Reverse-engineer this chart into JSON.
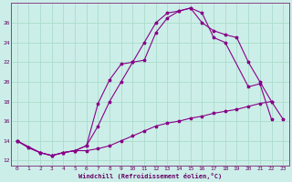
{
  "xlabel": "Windchill (Refroidissement éolien,°C)",
  "background_color": "#cceee8",
  "line_color": "#880088",
  "grid_color": "#aaddcc",
  "xlim": [
    -0.5,
    23.5
  ],
  "ylim": [
    11.5,
    28.0
  ],
  "yticks": [
    12,
    14,
    16,
    18,
    20,
    22,
    24,
    26
  ],
  "xticks": [
    0,
    1,
    2,
    3,
    4,
    5,
    6,
    7,
    8,
    9,
    10,
    11,
    12,
    13,
    14,
    15,
    16,
    17,
    18,
    19,
    20,
    21,
    22,
    23
  ],
  "series1_x": [
    0,
    1,
    2,
    3,
    4,
    5,
    6,
    7,
    8,
    9,
    10,
    11,
    12,
    13,
    14,
    15,
    16,
    17,
    18,
    19,
    20,
    21,
    22,
    23
  ],
  "series1_y": [
    14.0,
    13.3,
    12.8,
    12.5,
    12.8,
    13.0,
    13.0,
    13.2,
    13.5,
    14.0,
    14.5,
    15.0,
    15.5,
    15.8,
    16.0,
    16.3,
    16.5,
    16.8,
    17.0,
    17.2,
    17.5,
    17.8,
    18.0,
    16.2
  ],
  "series2_x": [
    0,
    1,
    2,
    3,
    4,
    5,
    6,
    7,
    8,
    9,
    10,
    11,
    12,
    13,
    14,
    15,
    16,
    17,
    18,
    20,
    21,
    22
  ],
  "series2_y": [
    14.0,
    13.3,
    12.8,
    12.5,
    12.8,
    13.0,
    13.5,
    17.8,
    20.2,
    21.8,
    22.0,
    22.2,
    25.0,
    26.5,
    27.2,
    27.5,
    27.0,
    24.5,
    24.0,
    19.5,
    19.8,
    16.2
  ],
  "series3_x": [
    0,
    2,
    3,
    4,
    5,
    6,
    7,
    8,
    9,
    10,
    11,
    12,
    13,
    14,
    15,
    16,
    17,
    18,
    19,
    20,
    21,
    22
  ],
  "series3_y": [
    14.0,
    12.8,
    12.5,
    12.8,
    13.0,
    13.5,
    15.5,
    18.0,
    20.0,
    22.0,
    24.0,
    26.0,
    27.0,
    27.2,
    27.5,
    26.0,
    25.2,
    24.8,
    24.5,
    22.0,
    20.0,
    18.0
  ]
}
